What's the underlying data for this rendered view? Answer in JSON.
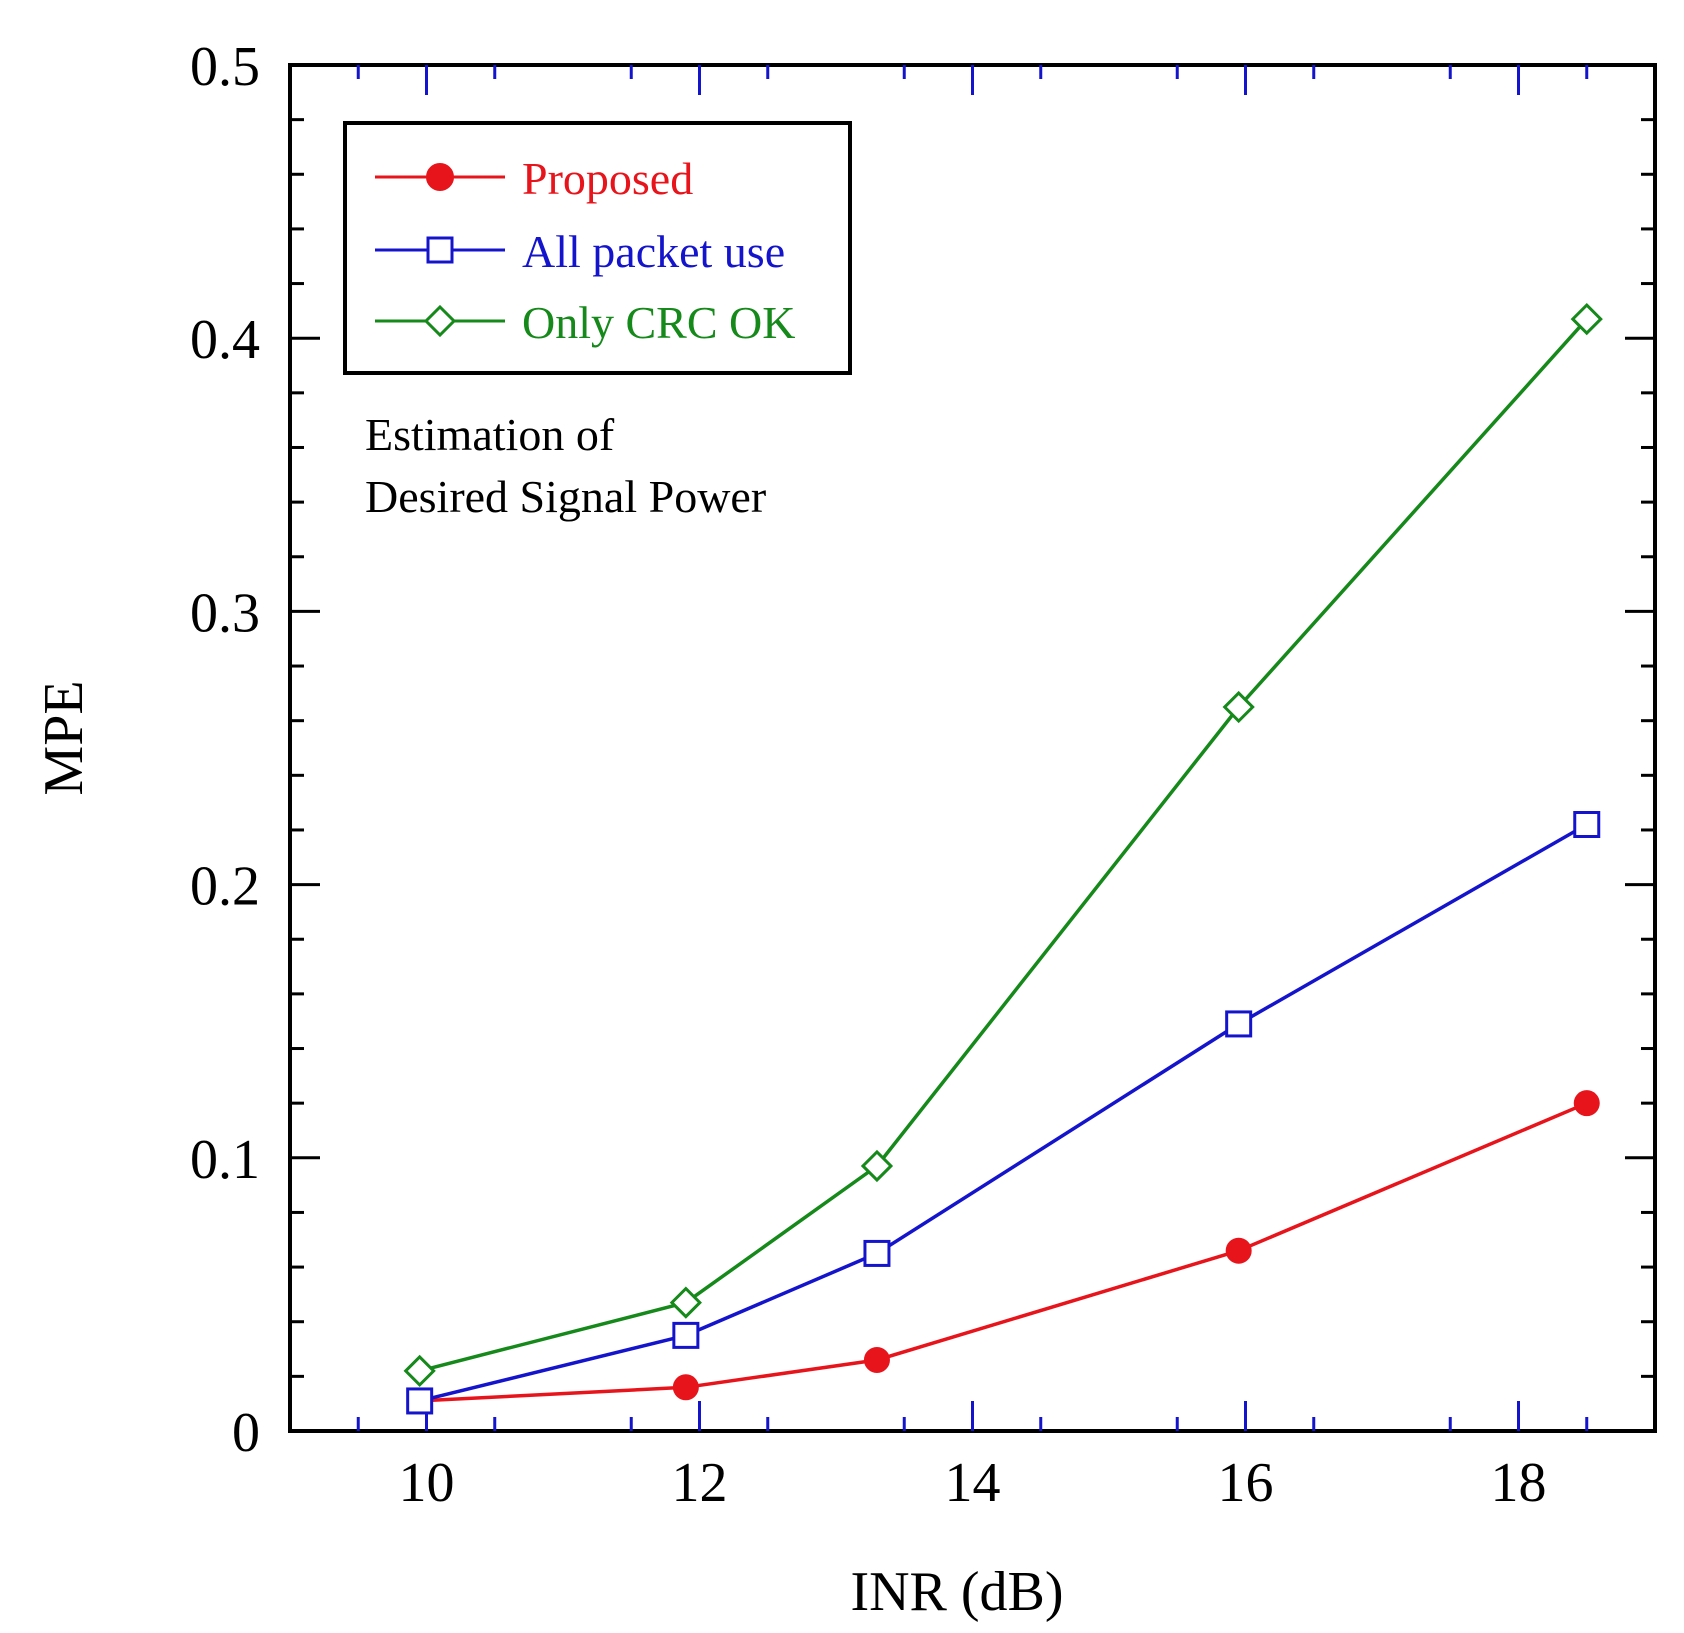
{
  "chart_data": {
    "type": "line",
    "title": "",
    "xlabel": "INR (dB)",
    "ylabel": "MPE",
    "xlim": [
      9,
      19
    ],
    "ylim": [
      0,
      0.5
    ],
    "x_ticks": [
      10,
      12,
      14,
      16,
      18
    ],
    "x_tick_labels": [
      "10",
      "12",
      "14",
      "16",
      "18"
    ],
    "y_ticks": [
      0,
      0.1,
      0.2,
      0.3,
      0.4,
      0.5
    ],
    "y_tick_labels": [
      "0",
      "0.1",
      "0.2",
      "0.3",
      "0.4",
      "0.5"
    ],
    "legend_position": "top-left",
    "grid": false,
    "series": [
      {
        "name": "Proposed",
        "color": "#e8141b",
        "marker": "filled-circle",
        "x": [
          9.95,
          11.9,
          13.3,
          15.95,
          18.5
        ],
        "y": [
          0.011,
          0.016,
          0.026,
          0.066,
          0.12
        ]
      },
      {
        "name": "All packet use",
        "color": "#1414cc",
        "marker": "open-square",
        "x": [
          9.95,
          11.9,
          13.3,
          15.95,
          18.5
        ],
        "y": [
          0.011,
          0.035,
          0.065,
          0.149,
          0.222
        ]
      },
      {
        "name": "Only CRC OK",
        "color": "#15891a",
        "marker": "open-diamond",
        "x": [
          9.95,
          11.9,
          13.3,
          15.95,
          18.5
        ],
        "y": [
          0.022,
          0.047,
          0.097,
          0.265,
          0.407
        ]
      }
    ],
    "annotations": [
      {
        "id": "estimation",
        "lines": [
          "Estimation of",
          "Desired Signal Power"
        ]
      }
    ]
  }
}
